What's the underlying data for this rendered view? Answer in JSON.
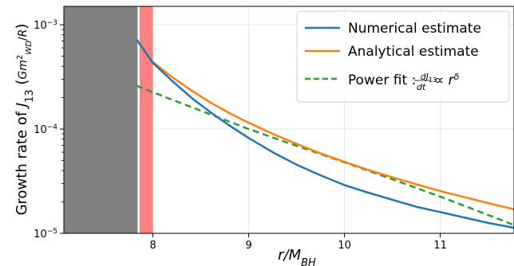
{
  "chart_data": {
    "type": "line",
    "xlabel": "r/M_BH",
    "ylabel": "Growth rate of J_13 (Gm_WD^2/R)",
    "xlim": [
      7.07,
      11.77
    ],
    "ylim": [
      1e-05,
      0.0015
    ],
    "yscale": "log",
    "grid": true,
    "legend_position": "top-right",
    "x_ticks": [
      8,
      9,
      10,
      11
    ],
    "y_ticks": [
      {
        "value": 1e-05,
        "base": "10",
        "exp": "−5"
      },
      {
        "value": 0.0001,
        "base": "10",
        "exp": "−4"
      },
      {
        "value": 0.001,
        "base": "10",
        "exp": "−3"
      }
    ],
    "shaded_regions": [
      {
        "name": "gray-region",
        "x0": 7.07,
        "x1": 7.85,
        "color": "#808080"
      },
      {
        "name": "red-region",
        "x0": 7.85,
        "x1": 8.0,
        "color": "#ff8080"
      }
    ],
    "white_line_x": 7.85,
    "series": [
      {
        "name": "Numerical estimate",
        "color": "#1f77b4",
        "dash": "solid",
        "x": [
          7.83,
          8.0,
          8.2,
          8.4,
          8.6,
          8.8,
          9.0,
          9.25,
          9.5,
          9.75,
          10.0,
          10.25,
          10.5,
          10.75,
          11.0,
          11.25,
          11.5,
          11.77
        ],
        "y": [
          0.00072,
          0.00043,
          0.00029,
          0.0002,
          0.000145,
          0.000108,
          8.2e-05,
          6e-05,
          4.55e-05,
          3.6e-05,
          2.9e-05,
          2.45e-05,
          2.1e-05,
          1.8e-05,
          1.6e-05,
          1.42e-05,
          1.26e-05,
          1.13e-05
        ]
      },
      {
        "name": "Analytical estimate",
        "color": "#ff7f0e",
        "dash": "solid",
        "x": [
          7.83,
          8.0,
          8.2,
          8.4,
          8.6,
          8.8,
          9.0,
          9.25,
          9.5,
          9.75,
          10.0,
          10.25,
          10.5,
          10.75,
          11.0,
          11.25,
          11.5,
          11.77
        ],
        "y": [
          0.00072,
          0.00044,
          0.000315,
          0.000235,
          0.00018,
          0.000142,
          0.000115,
          9e-05,
          7.2e-05,
          5.85e-05,
          4.85e-05,
          4.05e-05,
          3.45e-05,
          2.95e-05,
          2.55e-05,
          2.22e-05,
          1.95e-05,
          1.7e-05
        ]
      },
      {
        "name": "Power fit",
        "color": "#2ca02c",
        "dash": "dashed",
        "x": [
          7.83,
          8.0,
          8.5,
          9.0,
          9.5,
          10.0,
          10.5,
          11.0,
          11.5,
          11.77
        ],
        "y": [
          0.00026,
          0.000225,
          0.00015,
          0.0001,
          6.9e-05,
          4.8e-05,
          3.3e-05,
          2.25e-05,
          1.5e-05,
          1.2e-05
        ]
      }
    ]
  }
}
